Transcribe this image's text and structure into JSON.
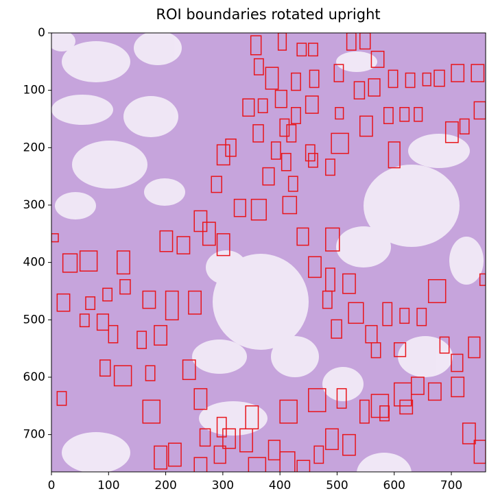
{
  "chart_data": {
    "type": "image",
    "title": "ROI boundaries rotated upright",
    "xlim": [
      0,
      760
    ],
    "ylim": [
      765,
      0
    ],
    "xticks": [
      0,
      100,
      200,
      300,
      400,
      500,
      600,
      700
    ],
    "yticks": [
      0,
      100,
      200,
      300,
      400,
      500,
      600,
      700
    ],
    "color": "#e8141a",
    "boxes": [
      [
        349,
        5,
        18,
        33
      ],
      [
        397,
        0,
        14,
        30
      ],
      [
        430,
        18,
        16,
        22
      ],
      [
        450,
        18,
        16,
        22
      ],
      [
        517,
        0,
        16,
        30
      ],
      [
        540,
        0,
        18,
        28
      ],
      [
        560,
        32,
        22,
        28
      ],
      [
        355,
        45,
        16,
        28
      ],
      [
        375,
        60,
        22,
        38
      ],
      [
        420,
        70,
        16,
        30
      ],
      [
        452,
        65,
        16,
        30
      ],
      [
        495,
        55,
        16,
        30
      ],
      [
        530,
        85,
        18,
        30
      ],
      [
        555,
        80,
        20,
        30
      ],
      [
        590,
        65,
        16,
        30
      ],
      [
        620,
        70,
        16,
        25
      ],
      [
        650,
        70,
        14,
        22
      ],
      [
        670,
        65,
        18,
        28
      ],
      [
        700,
        55,
        22,
        30
      ],
      [
        735,
        55,
        22,
        30
      ],
      [
        335,
        115,
        20,
        30
      ],
      [
        362,
        115,
        16,
        24
      ],
      [
        392,
        100,
        20,
        30
      ],
      [
        420,
        130,
        16,
        28
      ],
      [
        445,
        110,
        22,
        30
      ],
      [
        497,
        130,
        14,
        20
      ],
      [
        540,
        145,
        22,
        35
      ],
      [
        582,
        130,
        16,
        28
      ],
      [
        610,
        130,
        16,
        24
      ],
      [
        635,
        130,
        14,
        24
      ],
      [
        690,
        155,
        22,
        36
      ],
      [
        715,
        150,
        16,
        26
      ],
      [
        740,
        120,
        20,
        30
      ],
      [
        305,
        185,
        18,
        30
      ],
      [
        353,
        160,
        18,
        30
      ],
      [
        385,
        190,
        16,
        30
      ],
      [
        400,
        150,
        16,
        30
      ],
      [
        412,
        160,
        16,
        30
      ],
      [
        445,
        195,
        16,
        28
      ],
      [
        490,
        175,
        30,
        35
      ],
      [
        590,
        190,
        20,
        45
      ],
      [
        280,
        250,
        18,
        28
      ],
      [
        290,
        195,
        22,
        35
      ],
      [
        370,
        235,
        20,
        30
      ],
      [
        403,
        210,
        16,
        30
      ],
      [
        415,
        250,
        16,
        26
      ],
      [
        450,
        210,
        16,
        24
      ],
      [
        480,
        220,
        16,
        28
      ],
      [
        350,
        290,
        26,
        36
      ],
      [
        405,
        285,
        24,
        30
      ],
      [
        320,
        290,
        20,
        30
      ],
      [
        250,
        310,
        22,
        36
      ],
      [
        265,
        330,
        22,
        40
      ],
      [
        290,
        350,
        22,
        38
      ],
      [
        220,
        355,
        22,
        30
      ],
      [
        190,
        345,
        22,
        36
      ],
      [
        115,
        380,
        22,
        40
      ],
      [
        20,
        385,
        25,
        32
      ],
      [
        50,
        380,
        30,
        35
      ],
      [
        0,
        350,
        12,
        14
      ],
      [
        450,
        390,
        22,
        36
      ],
      [
        480,
        340,
        24,
        40
      ],
      [
        430,
        340,
        20,
        30
      ],
      [
        480,
        410,
        16,
        40
      ],
      [
        510,
        420,
        22,
        34
      ],
      [
        520,
        470,
        26,
        36
      ],
      [
        490,
        500,
        18,
        32
      ],
      [
        475,
        450,
        16,
        30
      ],
      [
        160,
        450,
        22,
        30
      ],
      [
        120,
        430,
        18,
        25
      ],
      [
        90,
        445,
        16,
        22
      ],
      [
        60,
        460,
        16,
        22
      ],
      [
        10,
        455,
        22,
        30
      ],
      [
        50,
        490,
        16,
        22
      ],
      [
        80,
        490,
        20,
        28
      ],
      [
        100,
        510,
        16,
        30
      ],
      [
        150,
        520,
        16,
        30
      ],
      [
        180,
        510,
        22,
        34
      ],
      [
        200,
        450,
        22,
        50
      ],
      [
        240,
        450,
        22,
        40
      ],
      [
        230,
        570,
        22,
        34
      ],
      [
        250,
        620,
        22,
        36
      ],
      [
        180,
        720,
        22,
        40
      ],
      [
        205,
        715,
        22,
        40
      ],
      [
        250,
        740,
        22,
        36
      ],
      [
        285,
        720,
        20,
        30
      ],
      [
        300,
        690,
        22,
        34
      ],
      [
        330,
        690,
        22,
        40
      ],
      [
        345,
        740,
        30,
        40
      ],
      [
        380,
        710,
        20,
        34
      ],
      [
        400,
        730,
        26,
        36
      ],
      [
        430,
        745,
        22,
        30
      ],
      [
        460,
        720,
        16,
        30
      ],
      [
        480,
        690,
        22,
        36
      ],
      [
        510,
        700,
        22,
        36
      ],
      [
        450,
        620,
        30,
        40
      ],
      [
        400,
        640,
        30,
        40
      ],
      [
        340,
        650,
        22,
        40
      ],
      [
        290,
        670,
        16,
        34
      ],
      [
        260,
        690,
        18,
        30
      ],
      [
        160,
        640,
        30,
        40
      ],
      [
        110,
        580,
        30,
        35
      ],
      [
        85,
        570,
        18,
        28
      ],
      [
        10,
        625,
        16,
        24
      ],
      [
        165,
        580,
        16,
        26
      ],
      [
        560,
        630,
        30,
        40
      ],
      [
        600,
        610,
        30,
        40
      ],
      [
        630,
        600,
        22,
        30
      ],
      [
        660,
        610,
        22,
        30
      ],
      [
        700,
        600,
        22,
        34
      ],
      [
        680,
        530,
        16,
        28
      ],
      [
        700,
        560,
        20,
        30
      ],
      [
        730,
        530,
        20,
        36
      ],
      [
        660,
        430,
        30,
        40
      ],
      [
        640,
        480,
        16,
        30
      ],
      [
        610,
        480,
        16,
        26
      ],
      [
        580,
        470,
        16,
        40
      ],
      [
        550,
        510,
        20,
        30
      ],
      [
        560,
        540,
        16,
        26
      ],
      [
        600,
        540,
        20,
        24
      ],
      [
        720,
        680,
        22,
        36
      ],
      [
        740,
        710,
        20,
        40
      ],
      [
        610,
        640,
        22,
        24
      ],
      [
        575,
        650,
        16,
        26
      ],
      [
        540,
        640,
        16,
        40
      ],
      [
        500,
        620,
        16,
        34
      ],
      [
        750,
        420,
        10,
        20
      ]
    ]
  }
}
